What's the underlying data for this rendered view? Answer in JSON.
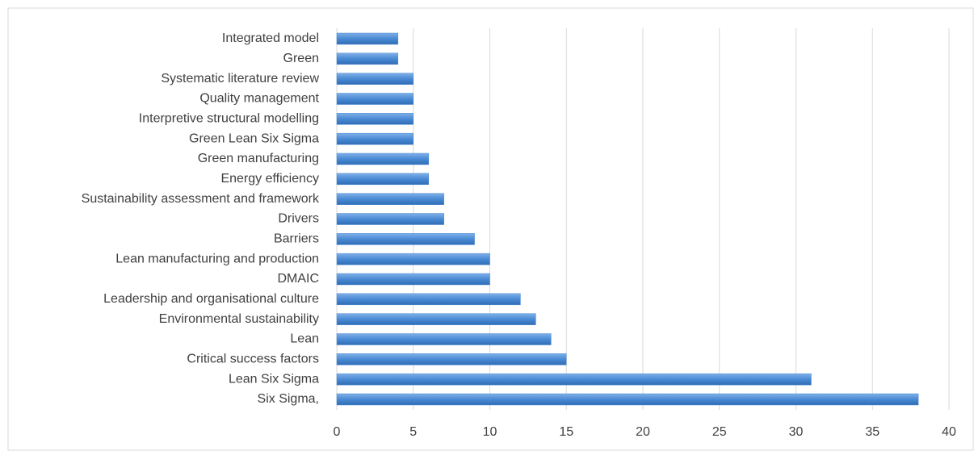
{
  "chart_data": {
    "type": "hbar",
    "categories": [
      "Integrated model",
      "Green",
      "Systematic literature review",
      "Quality management",
      "Interpretive structural modelling",
      "Green Lean Six Sigma",
      "Green manufacturing",
      "Energy efficiency",
      "Sustainability assessment and framework",
      "Drivers",
      "Barriers",
      "Lean manufacturing and production",
      "DMAIC",
      "Leadership and organisational culture",
      "Environmental sustainability",
      "Lean",
      "Critical success factors",
      "Lean Six Sigma",
      "Six Sigma,"
    ],
    "values": [
      4,
      4,
      5,
      5,
      5,
      5,
      6,
      6,
      7,
      7,
      9,
      10,
      10,
      12,
      13,
      14,
      15,
      31,
      38
    ],
    "color": "#4a8ad4",
    "xlim": [
      0,
      40
    ],
    "xticks": [
      0,
      5,
      10,
      15,
      20,
      25,
      30,
      35,
      40
    ],
    "grid": true
  }
}
